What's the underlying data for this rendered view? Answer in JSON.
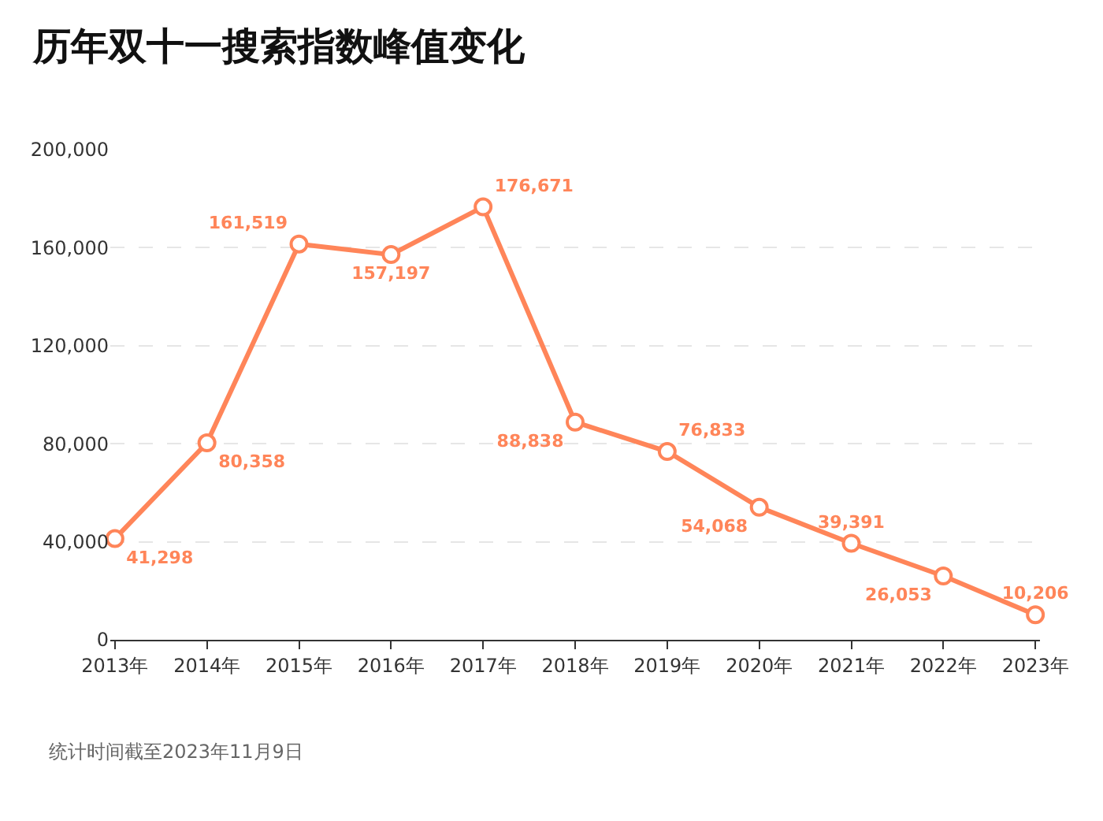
{
  "chart_data": {
    "type": "line",
    "title": "历年双十一搜索指数峰值变化",
    "categories": [
      "2013年",
      "2014年",
      "2015年",
      "2016年",
      "2017年",
      "2018年",
      "2019年",
      "2020年",
      "2021年",
      "2022年",
      "2023年"
    ],
    "series": [
      {
        "color": "#ff8559",
        "values": [
          41298,
          80358,
          161519,
          157197,
          176671,
          88838,
          76833,
          54068,
          39391,
          26053,
          10206
        ]
      }
    ],
    "ylim": [
      0,
      200000
    ],
    "yticks": [
      0,
      {
        "value": 40000,
        "label": "40,000"
      },
      {
        "value": 80000,
        "label": "80,000"
      },
      {
        "value": 120000,
        "label": "120,000"
      },
      {
        "value": 160000,
        "label": "160,000"
      },
      {
        "value": 200000,
        "label": "200,000"
      }
    ],
    "grid": "y",
    "marker": "circle",
    "line_style": "solid",
    "legend": false,
    "value_labels": [
      "41,298",
      "80,358",
      "161,519",
      "157,197",
      "176,671",
      "88,838",
      "76,833",
      "54,068",
      "39,391",
      "26,053",
      "10,206"
    ],
    "annotations": [
      "统计时间截至2023年11月9日"
    ]
  }
}
